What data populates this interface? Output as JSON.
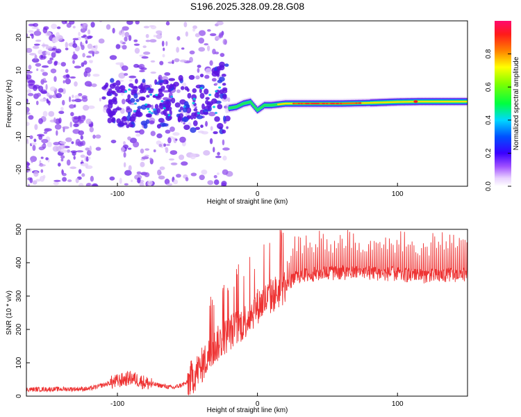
{
  "title": "S196.2025.328.09.28.G08",
  "chart_data": [
    {
      "type": "heatmap",
      "name": "spectrogram",
      "xlabel": "Height of straight line (km)",
      "ylabel": "Frequency (Hz)",
      "xlim": [
        -165,
        150
      ],
      "ylim": [
        -25,
        25
      ],
      "xticks": [
        -100,
        0,
        100
      ],
      "yticks": [
        -20,
        -10,
        0,
        10,
        20
      ],
      "colorbar": {
        "label": "Normalized spectral amplitude",
        "range": [
          0,
          1
        ],
        "ticks": [
          "0.0",
          "0.2",
          "0.4",
          "0.6",
          "0.8"
        ]
      },
      "ridge": {
        "description_points": [
          [
            -22,
            -1.5
          ],
          [
            -15,
            -1
          ],
          [
            -10,
            0
          ],
          [
            -5,
            0.5
          ],
          [
            0,
            -2
          ],
          [
            5,
            -0.5
          ],
          [
            10,
            -0.5
          ],
          [
            20,
            0
          ],
          [
            40,
            0
          ],
          [
            60,
            0
          ],
          [
            80,
            0.2
          ],
          [
            100,
            0.5
          ],
          [
            115,
            0.6
          ],
          [
            150,
            0.6
          ]
        ]
      }
    },
    {
      "type": "line",
      "name": "snr",
      "xlabel": "Height of straight line (km)",
      "ylabel": "SNR (10 * v/v)",
      "xlim": [
        -165,
        150
      ],
      "ylim": [
        0,
        500
      ],
      "xticks": [
        -100,
        0,
        100
      ],
      "yticks": [
        0,
        100,
        200,
        300,
        400,
        500
      ],
      "color": "#ee3333",
      "trend": [
        [
          -165,
          20
        ],
        [
          -120,
          22
        ],
        [
          -100,
          45
        ],
        [
          -90,
          55
        ],
        [
          -80,
          40
        ],
        [
          -60,
          25
        ],
        [
          -50,
          40
        ],
        [
          -40,
          90
        ],
        [
          -30,
          150
        ],
        [
          -20,
          190
        ],
        [
          -10,
          220
        ],
        [
          0,
          270
        ],
        [
          10,
          300
        ],
        [
          20,
          330
        ],
        [
          30,
          360
        ],
        [
          50,
          370
        ],
        [
          80,
          370
        ],
        [
          100,
          365
        ],
        [
          120,
          360
        ],
        [
          150,
          365
        ]
      ]
    }
  ]
}
